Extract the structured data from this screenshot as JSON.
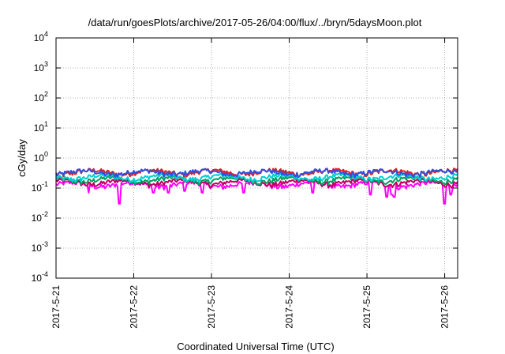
{
  "chart_data": {
    "type": "line",
    "title": "/data/run/goesPlots/archive/2017-05-26/04:00/flux/../bryn/5daysMoon.plot",
    "xlabel": "Coordinated Universal Time (UTC)",
    "ylabel": "cGy/day",
    "yscale": "log",
    "ylim": [
      0.0001,
      10000
    ],
    "y_ticks": [
      {
        "base": "10",
        "exp": "4",
        "value": 10000
      },
      {
        "base": "10",
        "exp": "3",
        "value": 1000
      },
      {
        "base": "10",
        "exp": "2",
        "value": 100
      },
      {
        "base": "10",
        "exp": "1",
        "value": 10
      },
      {
        "base": "10",
        "exp": "0",
        "value": 1
      },
      {
        "base": "10",
        "exp": "-1",
        "value": 0.1
      },
      {
        "base": "10",
        "exp": "-2",
        "value": 0.01
      },
      {
        "base": "10",
        "exp": "-3",
        "value": 0.001
      },
      {
        "base": "10",
        "exp": "-4",
        "value": 0.0001
      }
    ],
    "xlim": [
      "2017-05-21",
      "2017-05-26 04:00"
    ],
    "x_ticks": [
      "2017-5-21",
      "2017-5-22",
      "2017-5-23",
      "2017-5-24",
      "2017-5-25",
      "2017-5-26"
    ],
    "grid": true,
    "legend": "none",
    "series": [
      {
        "color": "#ff00ff",
        "base_value": 0.13,
        "dips": [
          {
            "day": 0.42,
            "value": 0.07
          },
          {
            "day": 0.82,
            "value": 0.03
          },
          {
            "day": 1.25,
            "value": 0.07
          },
          {
            "day": 1.45,
            "value": 0.07
          },
          {
            "day": 1.65,
            "value": 0.08
          },
          {
            "day": 1.88,
            "value": 0.07
          },
          {
            "day": 2.42,
            "value": 0.07
          },
          {
            "day": 3.3,
            "value": 0.07
          },
          {
            "day": 4.05,
            "value": 0.06
          },
          {
            "day": 4.25,
            "value": 0.05
          },
          {
            "day": 4.32,
            "value": 0.06
          },
          {
            "day": 4.35,
            "value": 0.05
          },
          {
            "day": 5.0,
            "value": 0.03
          },
          {
            "day": 5.08,
            "value": 0.06
          }
        ]
      },
      {
        "color": "#c00060",
        "base_value": 0.155,
        "dips": []
      },
      {
        "color": "#00a060",
        "base_value": 0.19,
        "dips": []
      },
      {
        "color": "#00d0d0",
        "base_value": 0.23,
        "dips": []
      },
      {
        "color": "#e02020",
        "base_value": 0.34,
        "dips": []
      },
      {
        "color": "#3050e0",
        "base_value": 0.33,
        "dips": []
      }
    ]
  }
}
